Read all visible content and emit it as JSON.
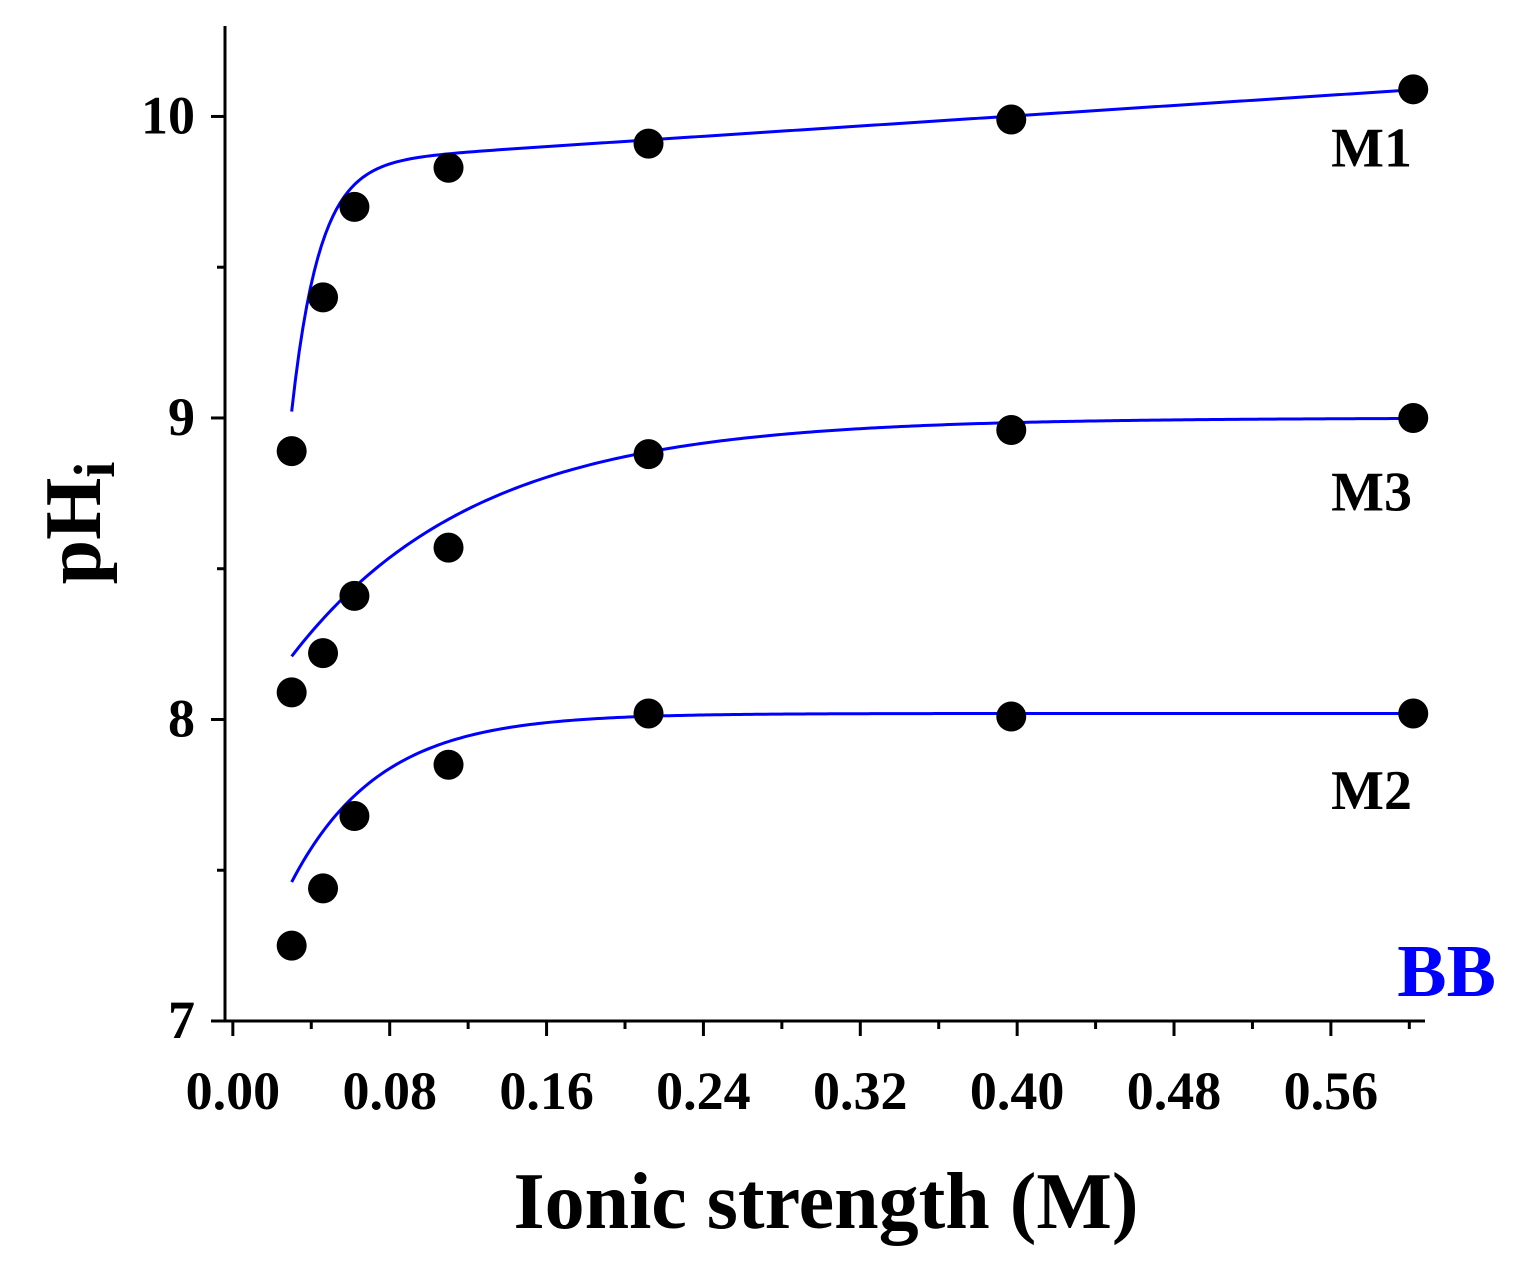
{
  "chart_data": {
    "type": "scatter",
    "title": "",
    "xlabel": "Ionic strength (M)",
    "ylabel": "pH",
    "ylabel_subscript": "i",
    "xlim": [
      -0.004,
      0.608
    ],
    "ylim": [
      7,
      10.3
    ],
    "xticks": [
      0.0,
      0.08,
      0.16,
      0.24,
      0.32,
      0.4,
      0.48,
      0.56
    ],
    "xtick_labels": [
      "0.00",
      "0.08",
      "0.16",
      "0.24",
      "0.32",
      "0.40",
      "0.48",
      "0.56"
    ],
    "yticks": [
      7,
      8,
      9,
      10
    ],
    "ytick_labels": [
      "7",
      "8",
      "9",
      "10"
    ],
    "panel_label": "BB",
    "colors": {
      "fit": "#0000ff",
      "marker": "#000000",
      "axis": "#000000",
      "panel_label": "#0000ff"
    },
    "series": [
      {
        "name": "M1",
        "x": [
          0.03,
          0.046,
          0.062,
          0.11,
          0.212,
          0.397,
          0.602
        ],
        "y": [
          8.89,
          9.4,
          9.7,
          9.83,
          9.91,
          9.99,
          10.09
        ],
        "fit": {
          "model": "a+b*x-c*exp(-k*x)",
          "a": 9.832,
          "b": 0.426,
          "c": 6.95,
          "k": 71.1
        }
      },
      {
        "name": "M3",
        "x": [
          0.03,
          0.046,
          0.062,
          0.11,
          0.212,
          0.397,
          0.602
        ],
        "y": [
          8.09,
          8.22,
          8.41,
          8.57,
          8.88,
          8.96,
          9.0
        ],
        "fit": {
          "model": "a-c*exp(-k*x)",
          "a": 9.0,
          "c": 1.09,
          "k": 10.7
        }
      },
      {
        "name": "M2",
        "x": [
          0.03,
          0.046,
          0.062,
          0.11,
          0.212,
          0.397,
          0.602
        ],
        "y": [
          7.25,
          7.44,
          7.68,
          7.85,
          8.02,
          8.01,
          8.02
        ],
        "fit": {
          "model": "a-c*exp(-k*x)",
          "a": 8.02,
          "c": 1.095,
          "k": 22.4
        }
      }
    ]
  }
}
